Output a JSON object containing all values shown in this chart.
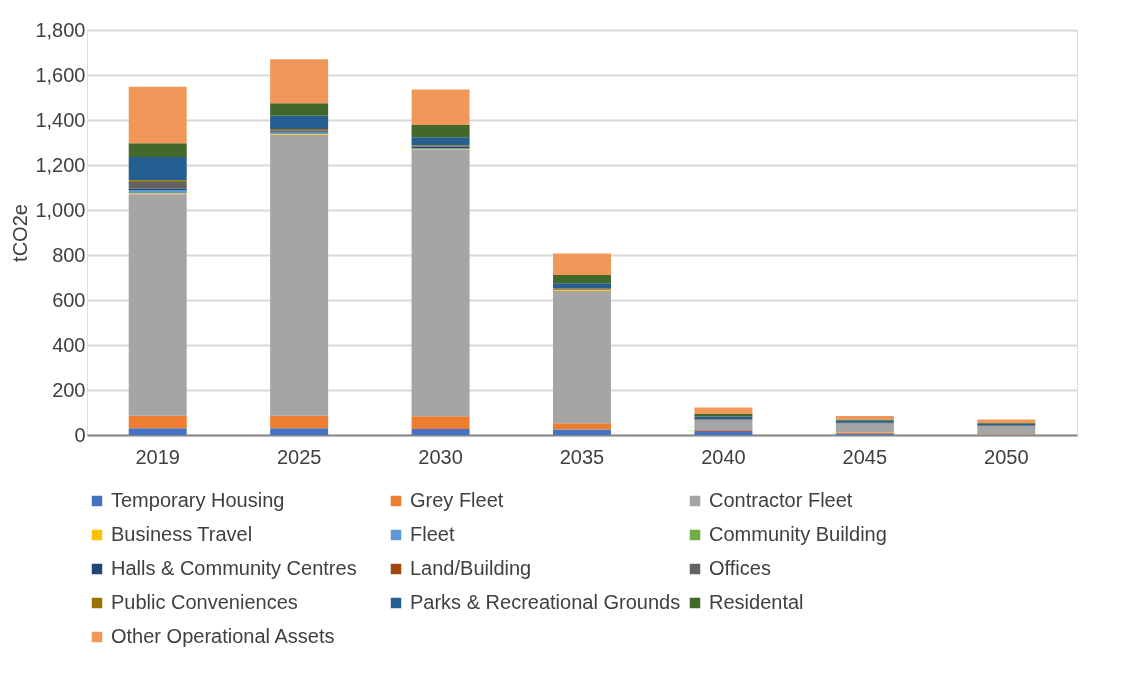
{
  "chart_data": {
    "type": "bar",
    "stacked": true,
    "ylabel": "tCO2e",
    "categories": [
      "2019",
      "2025",
      "2030",
      "2035",
      "2040",
      "2045",
      "2050"
    ],
    "ylim": [
      0,
      1800
    ],
    "yticks": [
      0,
      {
        "value": 200,
        "label": "200"
      },
      {
        "value": 400,
        "label": "400"
      },
      {
        "value": 600,
        "label": "600"
      },
      {
        "value": 800,
        "label": "800"
      },
      {
        "value": 1000,
        "label": "1,000"
      },
      {
        "value": 1200,
        "label": "1,200"
      },
      {
        "value": 1400,
        "label": "1,400"
      },
      {
        "value": 1600,
        "label": "1,600"
      },
      {
        "value": 1800,
        "label": "1,800"
      }
    ],
    "grid": "y",
    "legend": "bottom",
    "series": [
      {
        "name": "Temporary Housing",
        "color": "#4472c4",
        "values": [
          30,
          30,
          27,
          24,
          18,
          5,
          1
        ]
      },
      {
        "name": "Grey Fleet",
        "color": "#ed7d31",
        "values": [
          56,
          56,
          56,
          28,
          4,
          5,
          2
        ]
      },
      {
        "name": "Contractor Fleet",
        "color": "#a5a5a5",
        "values": [
          984,
          1249,
          1184,
          589,
          46,
          41,
          37
        ]
      },
      {
        "name": "Business Travel",
        "color": "#ffc000",
        "values": [
          5,
          3,
          3,
          4,
          0,
          0,
          0
        ]
      },
      {
        "name": "Fleet",
        "color": "#5b9bd5",
        "values": [
          14,
          5,
          4,
          0,
          0,
          0,
          0
        ]
      },
      {
        "name": "Community Building",
        "color": "#70ad47",
        "values": [
          null,
          2,
          1,
          0,
          0,
          0,
          0
        ]
      },
      {
        "name": "Halls & Community Centres",
        "color": "#264478",
        "values": [
          5,
          5,
          5,
          0,
          0,
          0,
          0
        ]
      },
      {
        "name": "Land/Building",
        "color": "#9e480e",
        "values": [
          null,
          1,
          1,
          0,
          0,
          0,
          0
        ]
      },
      {
        "name": "Offices",
        "color": "#636363",
        "values": [
          30,
          3,
          3,
          3,
          3,
          3,
          3
        ]
      },
      {
        "name": "Public Conveniences",
        "color": "#997300",
        "values": [
          8,
          6,
          4,
          4,
          0,
          0,
          0
        ]
      },
      {
        "name": "Parks & Recreational Grounds",
        "color": "#255e91",
        "values": [
          104,
          59,
          35,
          23,
          11,
          9,
          7
        ]
      },
      {
        "name": "Residental",
        "color": "#43682b",
        "values": [
          61,
          56,
          55,
          36,
          11,
          6,
          3
        ]
      },
      {
        "name": "Other Operational Assets",
        "color": "#f1975a",
        "values": [
          251,
          195,
          158,
          96,
          29,
          15,
          16
        ]
      }
    ]
  }
}
